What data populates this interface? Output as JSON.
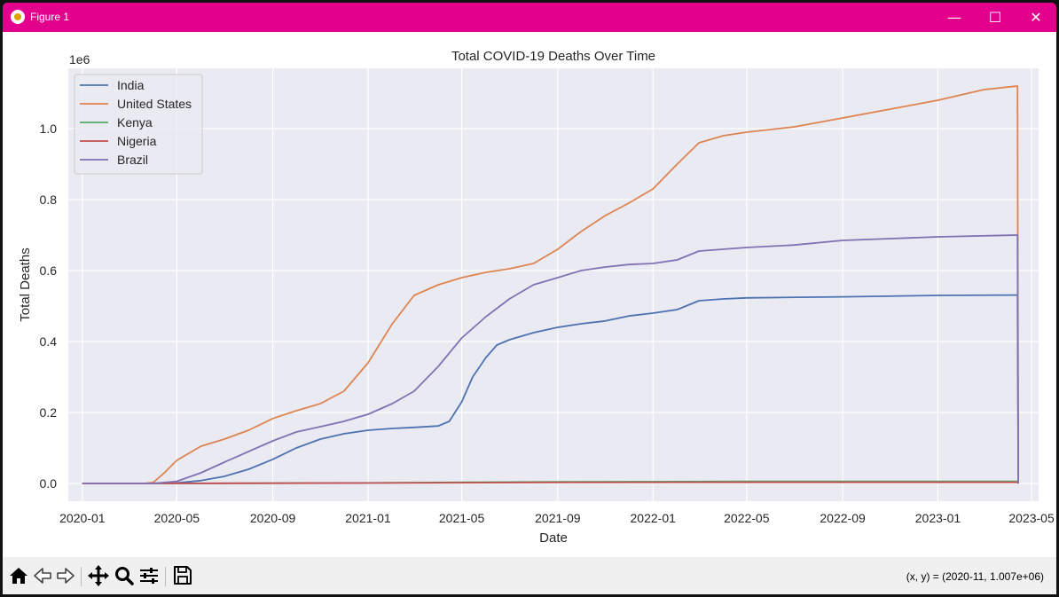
{
  "window": {
    "title": "Figure 1"
  },
  "titlebar_icons": [
    "minimize-icon",
    "maximize-icon",
    "close-icon"
  ],
  "toolbar": {
    "icons": [
      "home-icon",
      "back-icon",
      "forward-icon",
      "pan-icon",
      "zoom-icon",
      "configure-subplots-icon",
      "save-icon"
    ],
    "coord_readout": "(x, y) = (2020-11, 1.007e+06)"
  },
  "colors": {
    "titlebar": "#e3008c",
    "plot_background": "#eaeaf2",
    "India": "#4c72b0",
    "United States": "#dd8452",
    "Kenya": "#55a868",
    "Nigeria": "#c44e52",
    "Brazil": "#8172b3"
  },
  "chart_data": {
    "type": "line",
    "title": "Total COVID-19 Deaths Over Time",
    "xlabel": "Date",
    "ylabel": "Total Deaths",
    "y_offset_label": "1e6",
    "xlim": [
      "2019-12-14",
      "2023-05-10"
    ],
    "ylim": [
      -50000,
      1170000
    ],
    "x_ticks": [
      "2020-01",
      "2020-05",
      "2020-09",
      "2021-01",
      "2021-05",
      "2021-09",
      "2022-01",
      "2022-05",
      "2022-09",
      "2023-01",
      "2023-05"
    ],
    "y_ticks": [
      "0.0",
      "0.2",
      "0.4",
      "0.6",
      "0.8",
      "1.0"
    ],
    "grid": true,
    "legend_position": "top-left",
    "series": [
      {
        "name": "India",
        "color": "#4c72b0",
        "x": [
          "2020-01-01",
          "2020-03-15",
          "2020-05-01",
          "2020-06-01",
          "2020-07-01",
          "2020-08-01",
          "2020-09-01",
          "2020-10-01",
          "2020-11-01",
          "2020-12-01",
          "2021-01-01",
          "2021-02-01",
          "2021-03-01",
          "2021-04-01",
          "2021-04-15",
          "2021-05-01",
          "2021-05-15",
          "2021-06-01",
          "2021-06-15",
          "2021-07-01",
          "2021-08-01",
          "2021-09-01",
          "2021-10-01",
          "2021-11-01",
          "2021-12-01",
          "2022-01-01",
          "2022-02-01",
          "2022-03-01",
          "2022-04-01",
          "2022-05-01",
          "2022-09-01",
          "2023-01-01",
          "2023-04-13",
          "2023-04-14"
        ],
        "y": [
          0,
          0,
          1500,
          8000,
          20000,
          40000,
          68000,
          100000,
          125000,
          140000,
          150000,
          155000,
          158000,
          162000,
          175000,
          230000,
          300000,
          355000,
          390000,
          405000,
          425000,
          440000,
          450000,
          458000,
          472000,
          480000,
          490000,
          515000,
          520000,
          523000,
          526000,
          530000,
          531000,
          0
        ]
      },
      {
        "name": "United States",
        "color": "#dd8452",
        "x": [
          "2020-01-01",
          "2020-03-20",
          "2020-04-01",
          "2020-04-15",
          "2020-05-01",
          "2020-06-01",
          "2020-07-01",
          "2020-08-01",
          "2020-09-01",
          "2020-10-01",
          "2020-11-01",
          "2020-12-01",
          "2021-01-01",
          "2021-02-01",
          "2021-03-01",
          "2021-04-01",
          "2021-05-01",
          "2021-06-01",
          "2021-07-01",
          "2021-08-01",
          "2021-09-01",
          "2021-10-01",
          "2021-11-01",
          "2021-12-01",
          "2022-01-01",
          "2022-02-01",
          "2022-03-01",
          "2022-04-01",
          "2022-05-01",
          "2022-07-01",
          "2022-09-01",
          "2022-11-01",
          "2023-01-01",
          "2023-03-01",
          "2023-04-13",
          "2023-04-14"
        ],
        "y": [
          0,
          0,
          3000,
          30000,
          65000,
          105000,
          125000,
          150000,
          183000,
          205000,
          225000,
          260000,
          340000,
          450000,
          530000,
          560000,
          580000,
          595000,
          605000,
          620000,
          660000,
          710000,
          755000,
          790000,
          830000,
          900000,
          960000,
          980000,
          990000,
          1005000,
          1030000,
          1055000,
          1080000,
          1110000,
          1120000,
          0
        ]
      },
      {
        "name": "Kenya",
        "color": "#55a868",
        "x": [
          "2020-01-01",
          "2020-04-01",
          "2021-01-01",
          "2021-09-01",
          "2022-05-01",
          "2023-04-13",
          "2023-04-14"
        ],
        "y": [
          0,
          0,
          1600,
          4700,
          5650,
          5700,
          0
        ]
      },
      {
        "name": "Nigeria",
        "color": "#c44e52",
        "x": [
          "2020-01-01",
          "2020-04-01",
          "2021-01-01",
          "2021-09-01",
          "2022-05-01",
          "2023-04-13",
          "2023-04-14"
        ],
        "y": [
          0,
          0,
          1300,
          2800,
          3140,
          3155,
          0
        ]
      },
      {
        "name": "Brazil",
        "color": "#8172b3",
        "x": [
          "2020-01-01",
          "2020-04-01",
          "2020-05-01",
          "2020-06-01",
          "2020-07-01",
          "2020-08-01",
          "2020-09-01",
          "2020-10-01",
          "2020-11-01",
          "2020-12-01",
          "2021-01-01",
          "2021-02-01",
          "2021-03-01",
          "2021-04-01",
          "2021-05-01",
          "2021-06-01",
          "2021-07-01",
          "2021-08-01",
          "2021-09-01",
          "2021-10-01",
          "2021-11-01",
          "2021-12-01",
          "2022-01-01",
          "2022-02-01",
          "2022-03-01",
          "2022-05-01",
          "2022-07-01",
          "2022-09-01",
          "2022-11-01",
          "2023-01-01",
          "2023-04-13",
          "2023-04-14"
        ],
        "y": [
          0,
          0,
          6000,
          30000,
          60000,
          90000,
          120000,
          145000,
          160000,
          175000,
          195000,
          225000,
          260000,
          330000,
          410000,
          470000,
          520000,
          560000,
          580000,
          600000,
          610000,
          617000,
          620000,
          630000,
          655000,
          665000,
          672000,
          685000,
          690000,
          695000,
          700000,
          0
        ]
      }
    ]
  }
}
